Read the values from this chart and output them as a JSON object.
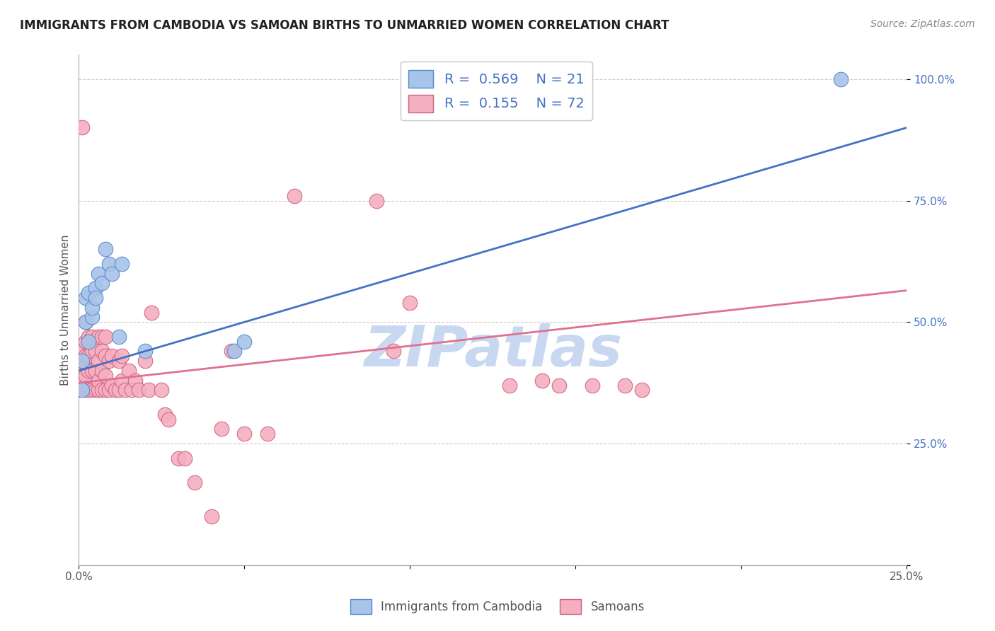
{
  "title": "IMMIGRANTS FROM CAMBODIA VS SAMOAN BIRTHS TO UNMARRIED WOMEN CORRELATION CHART",
  "source": "Source: ZipAtlas.com",
  "ylabel": "Births to Unmarried Women",
  "xlim": [
    0.0,
    0.25
  ],
  "ylim": [
    0.0,
    1.05
  ],
  "yticks": [
    0.0,
    0.25,
    0.5,
    0.75,
    1.0
  ],
  "xticks": [
    0.0,
    0.05,
    0.1,
    0.15,
    0.2,
    0.25
  ],
  "cambodia_color": "#a8c4e8",
  "samoan_color": "#f4afc0",
  "cambodia_line_color": "#4472c4",
  "samoan_line_color": "#e07090",
  "cambodia_edge_color": "#5588d0",
  "samoan_edge_color": "#d06080",
  "cambodia_x": [
    0.001,
    0.001,
    0.002,
    0.002,
    0.003,
    0.003,
    0.004,
    0.004,
    0.005,
    0.005,
    0.006,
    0.007,
    0.008,
    0.009,
    0.01,
    0.012,
    0.013,
    0.02,
    0.047,
    0.05,
    0.23
  ],
  "cambodia_y": [
    0.36,
    0.42,
    0.5,
    0.55,
    0.46,
    0.56,
    0.51,
    0.53,
    0.57,
    0.55,
    0.6,
    0.58,
    0.65,
    0.62,
    0.6,
    0.47,
    0.62,
    0.44,
    0.44,
    0.46,
    1.0
  ],
  "samoan_x": [
    0.0,
    0.001,
    0.001,
    0.001,
    0.001,
    0.001,
    0.002,
    0.002,
    0.002,
    0.002,
    0.002,
    0.003,
    0.003,
    0.003,
    0.003,
    0.004,
    0.004,
    0.004,
    0.004,
    0.005,
    0.005,
    0.005,
    0.006,
    0.006,
    0.006,
    0.006,
    0.007,
    0.007,
    0.007,
    0.007,
    0.008,
    0.008,
    0.008,
    0.008,
    0.009,
    0.009,
    0.01,
    0.01,
    0.011,
    0.012,
    0.012,
    0.013,
    0.013,
    0.014,
    0.015,
    0.016,
    0.017,
    0.018,
    0.02,
    0.021,
    0.022,
    0.025,
    0.026,
    0.027,
    0.03,
    0.032,
    0.035,
    0.04,
    0.043,
    0.046,
    0.05,
    0.057,
    0.065,
    0.09,
    0.095,
    0.1,
    0.13,
    0.14,
    0.145,
    0.155,
    0.165,
    0.17
  ],
  "samoan_y": [
    0.36,
    0.37,
    0.39,
    0.42,
    0.44,
    0.9,
    0.36,
    0.39,
    0.43,
    0.46,
    0.5,
    0.36,
    0.4,
    0.43,
    0.47,
    0.36,
    0.4,
    0.44,
    0.47,
    0.36,
    0.4,
    0.44,
    0.36,
    0.38,
    0.42,
    0.47,
    0.36,
    0.4,
    0.44,
    0.47,
    0.36,
    0.39,
    0.43,
    0.47,
    0.36,
    0.42,
    0.37,
    0.43,
    0.36,
    0.42,
    0.36,
    0.38,
    0.43,
    0.36,
    0.4,
    0.36,
    0.38,
    0.36,
    0.42,
    0.36,
    0.52,
    0.36,
    0.31,
    0.3,
    0.22,
    0.22,
    0.17,
    0.1,
    0.28,
    0.44,
    0.27,
    0.27,
    0.76,
    0.75,
    0.44,
    0.54,
    0.37,
    0.38,
    0.37,
    0.37,
    0.37,
    0.36
  ],
  "blue_line_x0": 0.0,
  "blue_line_y0": 0.4,
  "blue_line_x1": 0.25,
  "blue_line_y1": 0.9,
  "pink_line_x0": 0.0,
  "pink_line_y0": 0.375,
  "pink_line_x1": 0.25,
  "pink_line_y1": 0.565,
  "watermark": "ZIPatlas",
  "watermark_color": "#c8d8f0",
  "grid_color": "#cccccc",
  "title_color": "#222222",
  "source_color": "#888888",
  "axis_color": "#aaaaaa"
}
